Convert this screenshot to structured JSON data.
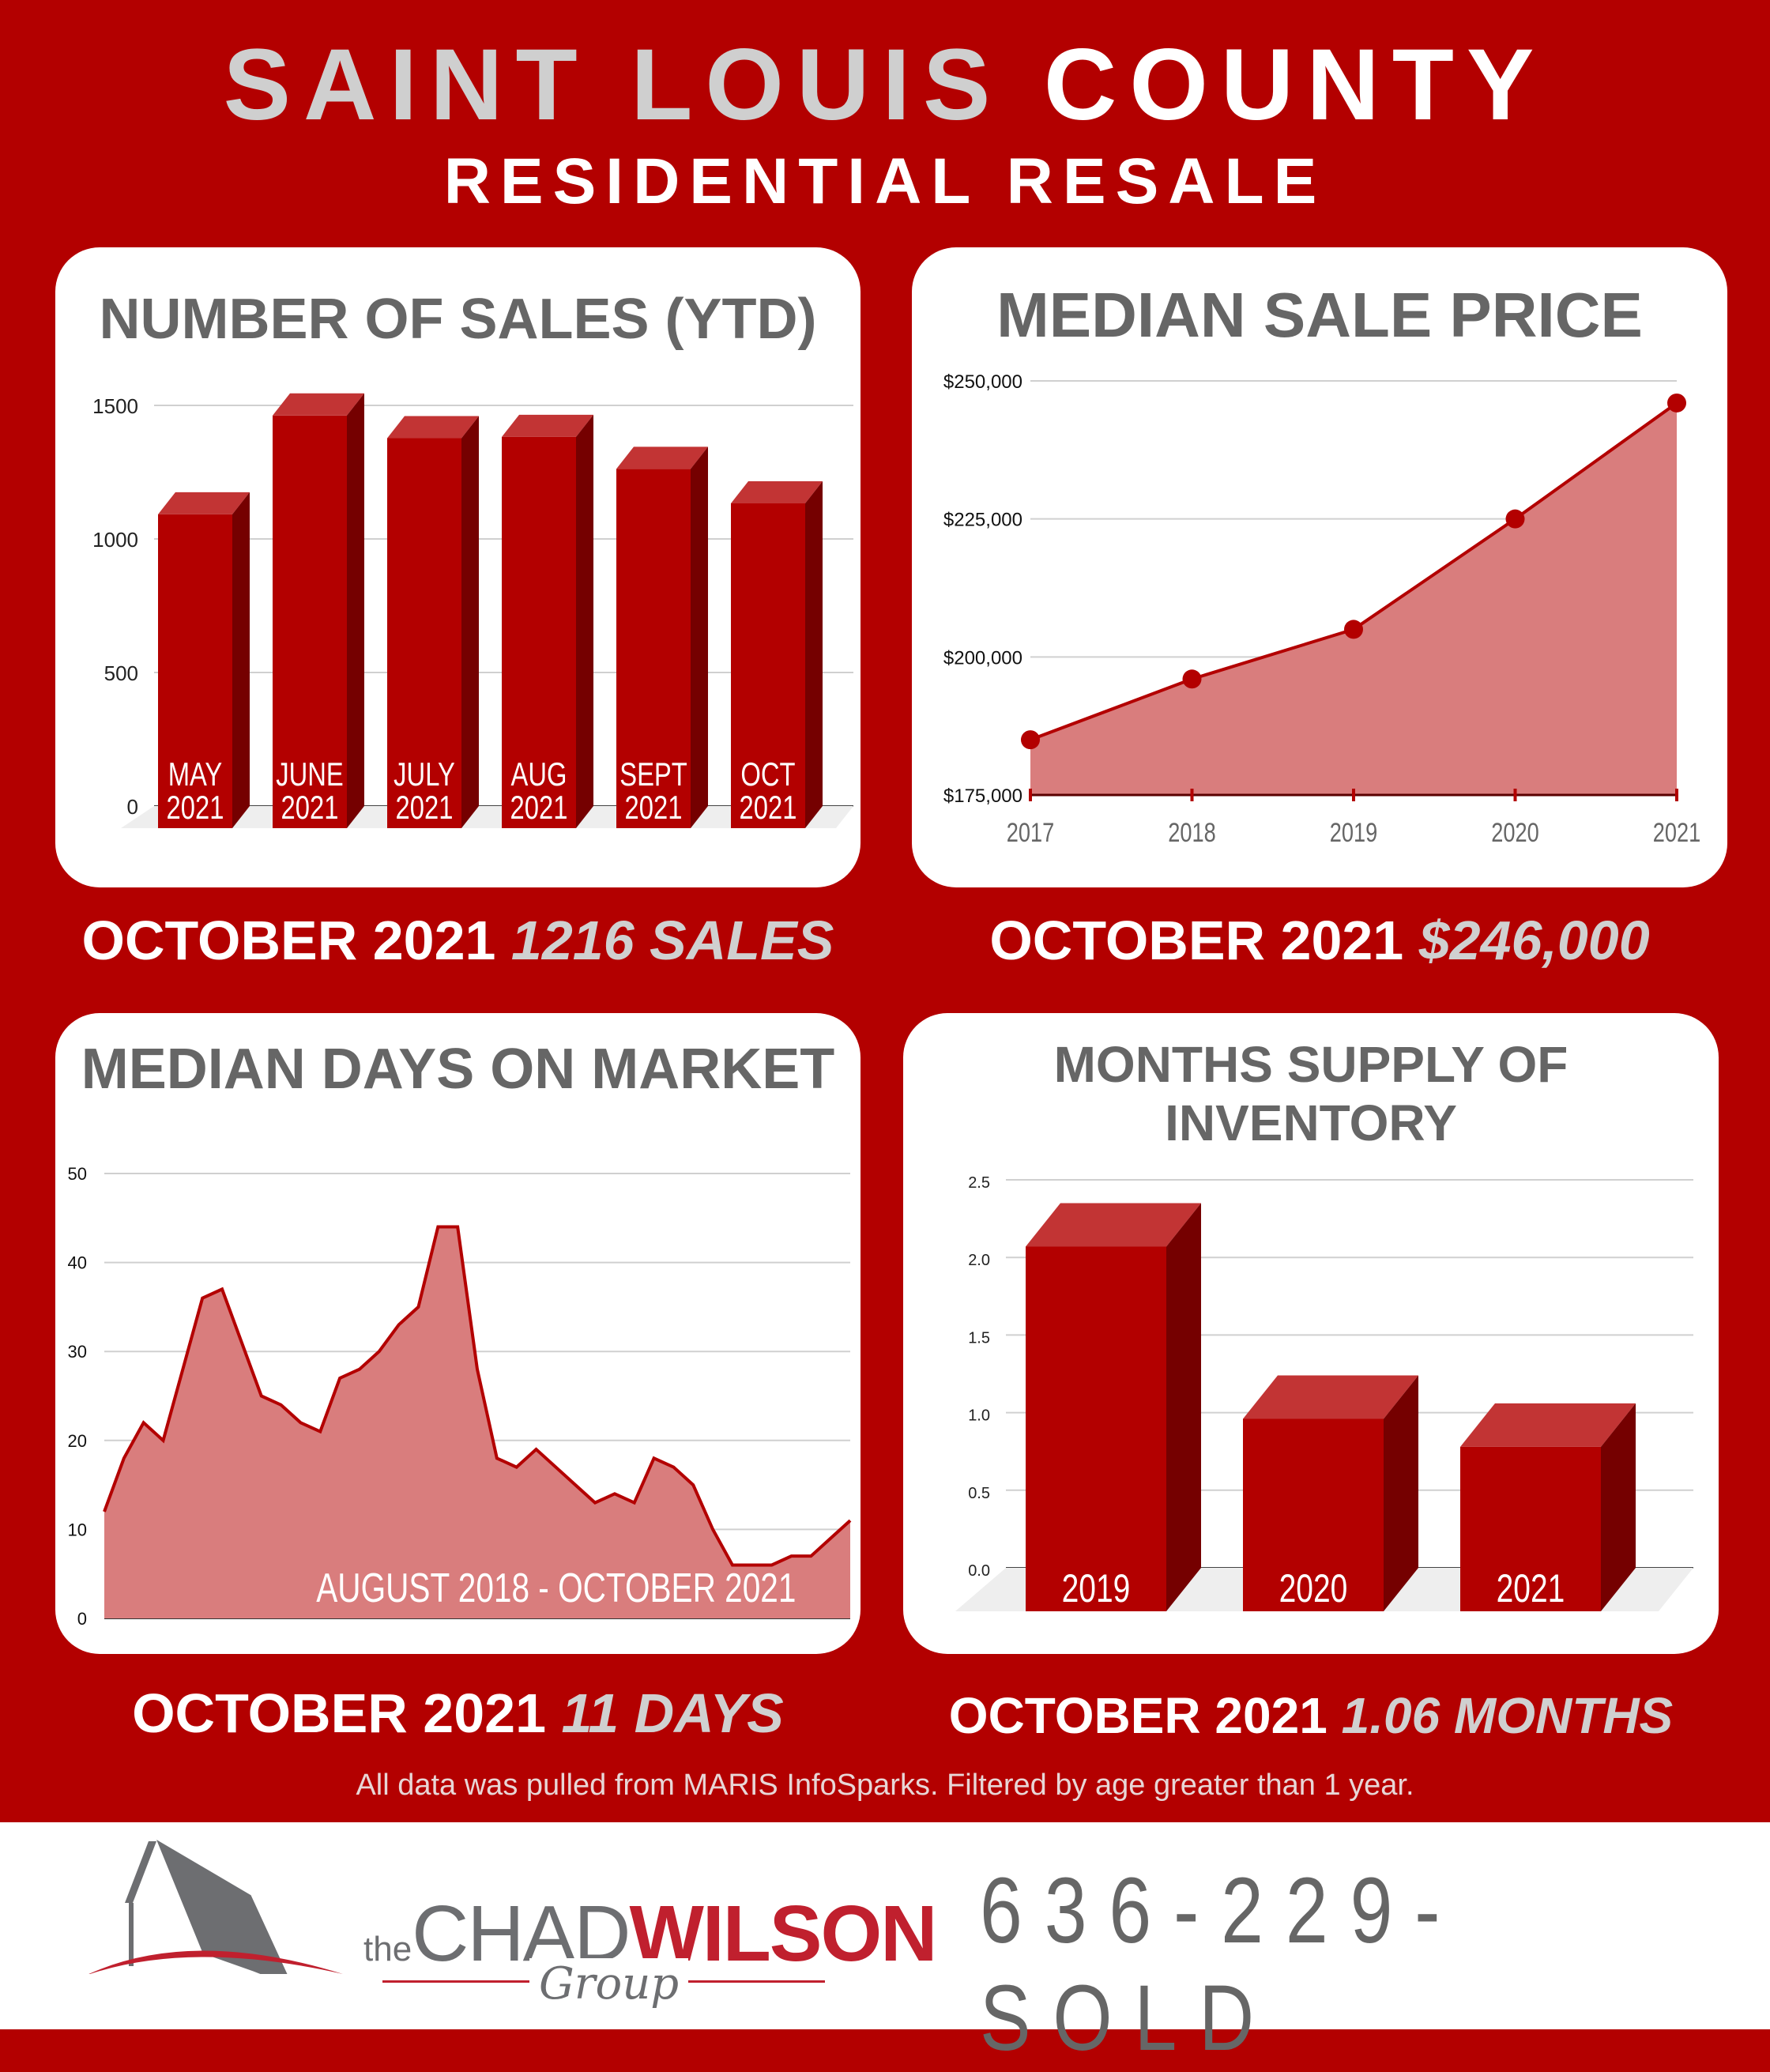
{
  "header": {
    "title_part1": "SAINT LOUIS",
    "title_part2": "COUNTY",
    "subtitle": "RESIDENTIAL RESALE"
  },
  "panels": {
    "sales": {
      "title": "NUMBER OF SALES (YTD)",
      "caption_prefix": "OCTOBER 2021",
      "caption_value": "1216 SALES"
    },
    "price": {
      "title": "MEDIAN SALE PRICE",
      "caption_prefix": "OCTOBER 2021",
      "caption_value": "$246,000"
    },
    "dom": {
      "title": "MEDIAN DAYS ON MARKET",
      "range_label": "AUGUST 2018 - OCTOBER 2021",
      "caption_prefix": "OCTOBER 2021",
      "caption_value": "11 DAYS"
    },
    "inventory": {
      "title_line1": "MONTHS SUPPLY OF",
      "title_line2": "INVENTORY",
      "caption_prefix": "OCTOBER 2021",
      "caption_value": "1.06 MONTHS"
    }
  },
  "source_note": "All data was pulled from MARIS InfoSparks. Filtered by age greater than 1 year.",
  "footer": {
    "logo_the": "the",
    "logo_chad": "CHAD",
    "logo_wilson": "WILSON",
    "logo_group": "Group",
    "phone": "636-229-SOLD"
  },
  "colors": {
    "background": "#b30000",
    "bar_front": "#b30000",
    "bar_top": "#c23434",
    "bar_side": "#750000",
    "area_fill": "#d97d7d",
    "line": "#b30000",
    "title_grey": "#666666",
    "highlight_grey": "#d0d0d0"
  },
  "chart_data": [
    {
      "type": "bar",
      "title": "NUMBER OF SALES (YTD)",
      "categories": [
        "MAY 2021",
        "JUNE 2021",
        "JULY 2021",
        "AUG 2021",
        "SEPT 2021",
        "OCT 2021"
      ],
      "values": [
        1175,
        1545,
        1460,
        1465,
        1345,
        1216
      ],
      "yticks": [
        0,
        500,
        1000,
        1500
      ],
      "ylim": [
        0,
        1600
      ],
      "xlabel": "",
      "ylabel": "",
      "grid": true,
      "style": "3d"
    },
    {
      "type": "area",
      "title": "MEDIAN SALE PRICE",
      "x": [
        "2017",
        "2018",
        "2019",
        "2020",
        "2021"
      ],
      "values": [
        185000,
        196000,
        205000,
        225000,
        246000
      ],
      "yticks": [
        "$175,000",
        "$200,000",
        "$225,000",
        "$250,000"
      ],
      "ylim": [
        175000,
        250000
      ],
      "markers": true,
      "grid": true
    },
    {
      "type": "area",
      "title": "MEDIAN DAYS ON MARKET",
      "annotation": "AUGUST 2018 - OCTOBER 2021",
      "x_start": "Aug 2018",
      "x_end": "Oct 2021",
      "values": [
        12,
        18,
        22,
        20,
        28,
        36,
        37,
        31,
        25,
        24,
        22,
        21,
        27,
        28,
        30,
        33,
        35,
        44,
        44,
        28,
        18,
        17,
        19,
        17,
        15,
        13,
        14,
        13,
        18,
        17,
        15,
        10,
        6,
        6,
        6,
        7,
        7,
        9,
        11
      ],
      "yticks": [
        0,
        10,
        20,
        30,
        40,
        50
      ],
      "ylim": [
        0,
        50
      ],
      "grid": true
    },
    {
      "type": "bar",
      "title": "MONTHS SUPPLY OF INVENTORY",
      "categories": [
        "2019",
        "2020",
        "2021"
      ],
      "values": [
        2.35,
        1.24,
        1.06
      ],
      "yticks": [
        "0.0",
        "0.5",
        "1.0",
        "1.5",
        "2.0",
        "2.5"
      ],
      "ylim": [
        0,
        2.5
      ],
      "grid": true,
      "style": "3d"
    }
  ]
}
